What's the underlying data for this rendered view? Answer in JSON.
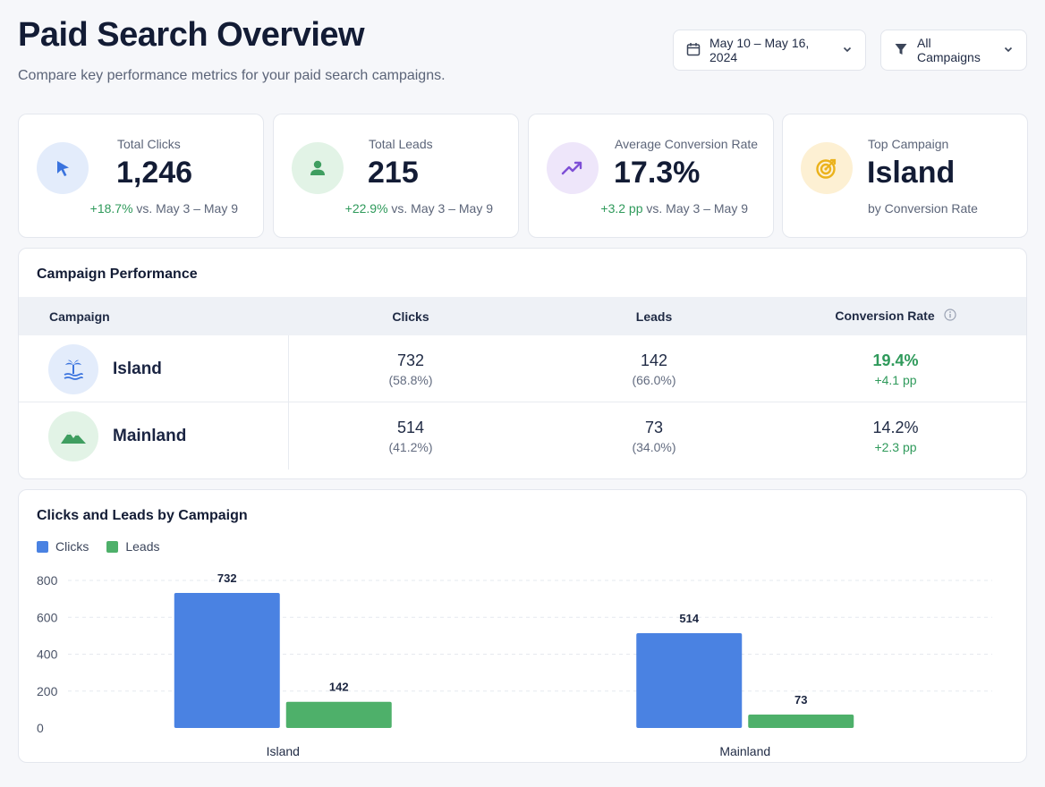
{
  "header": {
    "title": "Paid Search Overview",
    "subtitle": "Compare key performance metrics for your paid search campaigns.",
    "date_range": "May 10 – May 16, 2024",
    "campaign_filter": "All Campaigns"
  },
  "colors": {
    "clicks": "#4a82e2",
    "leads": "#4eb06a",
    "positive": "#2f9a5b"
  },
  "kpis": [
    {
      "label": "Total Clicks",
      "value": "1,246",
      "delta": "+18.7%",
      "comparison": "vs. May 3 – May 9",
      "icon": "cursor-icon"
    },
    {
      "label": "Total Leads",
      "value": "215",
      "delta": "+22.9%",
      "comparison": "vs. May 3 – May 9",
      "icon": "user-icon"
    },
    {
      "label": "Average Conversion Rate",
      "value": "17.3%",
      "delta": "+3.2 pp",
      "comparison": "vs. May 3 – May 9",
      "icon": "trend-up-icon"
    },
    {
      "label": "Top Campaign",
      "value": "Island",
      "note": "by Conversion Rate",
      "icon": "target-icon"
    }
  ],
  "table": {
    "title": "Campaign Performance",
    "columns": [
      "Campaign",
      "Clicks",
      "Leads",
      "Conversion Rate"
    ],
    "rows": [
      {
        "campaign": "Island",
        "icon": "island-icon",
        "clicks": "732",
        "clicks_share": "(58.8%)",
        "leads": "142",
        "leads_share": "(66.0%)",
        "conv_rate": "19.4%",
        "conv_delta": "+4.1 pp"
      },
      {
        "campaign": "Mainland",
        "icon": "mountain-icon",
        "clicks": "514",
        "clicks_share": "(41.2%)",
        "leads": "73",
        "leads_share": "(34.0%)",
        "conv_rate": "14.2%",
        "conv_delta": "+2.3 pp"
      }
    ]
  },
  "chart_data": {
    "type": "bar",
    "title": "Clicks and Leads by Campaign",
    "categories": [
      "Island",
      "Mainland"
    ],
    "series": [
      {
        "name": "Clicks",
        "values": [
          732,
          514
        ]
      },
      {
        "name": "Leads",
        "values": [
          142,
          73
        ]
      }
    ],
    "ylim": [
      0,
      800
    ],
    "yticks": [
      0,
      200,
      400,
      600,
      800
    ],
    "grid": true,
    "legend": "top-left"
  }
}
